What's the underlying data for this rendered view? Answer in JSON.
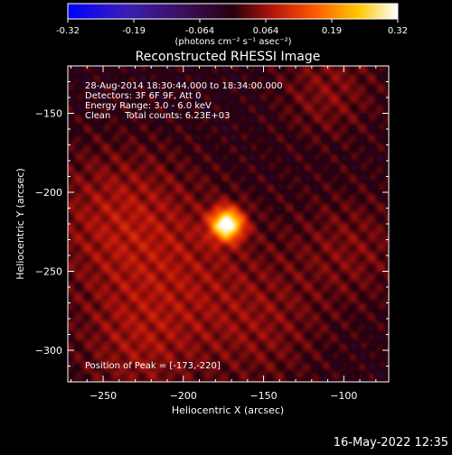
{
  "colorbar": {
    "tick_labels": [
      "-0.32",
      "-0.19",
      "-0.064",
      "0.064",
      "0.19",
      "0.32"
    ],
    "unit_label": "(photons cm⁻² s⁻¹ asec⁻²)"
  },
  "image": {
    "title": "Reconstructed RHESSI Image",
    "info_lines": [
      "28-Aug-2014 18:30:44.000 to 18:34:00.000",
      "Detectors: 3F 6F 9F, Att 0",
      "Energy Range: 3.0 - 6.0 keV",
      "Clean     Total counts: 6.23E+03"
    ],
    "peak_label": "Position of Peak = [-173,-220]"
  },
  "footer": {
    "timestamp": "16-May-2022 12:35"
  },
  "chart_data": {
    "type": "heatmap",
    "title": "Reconstructed RHESSI Image",
    "xlabel": "Heliocentric X (arcsec)",
    "ylabel": "Heliocentric Y (arcsec)",
    "xlim": [
      -272,
      -72
    ],
    "ylim": [
      -320,
      -120
    ],
    "x_ticks": [
      -250,
      -200,
      -150,
      -100
    ],
    "y_ticks": [
      -150,
      -200,
      -250,
      -300
    ],
    "color_range": [
      -0.32,
      0.32
    ],
    "colormap": "black-blue-purple-red-orange-yellow-white",
    "peak": {
      "x": -173,
      "y": -220
    },
    "sources": [
      {
        "x": -173,
        "y": -220,
        "value": 0.32,
        "sigma": 7
      },
      {
        "x": -210,
        "y": -250,
        "value": 0.06,
        "sigma": 40
      },
      {
        "x": -245,
        "y": -210,
        "value": 0.05,
        "sigma": 30
      },
      {
        "x": -110,
        "y": -135,
        "value": 0.05,
        "sigma": 22
      },
      {
        "x": -95,
        "y": -235,
        "value": 0.045,
        "sigma": 25
      },
      {
        "x": -230,
        "y": -300,
        "value": 0.04,
        "sigma": 25
      },
      {
        "x": -150,
        "y": -285,
        "value": 0.04,
        "sigma": 28
      }
    ]
  }
}
